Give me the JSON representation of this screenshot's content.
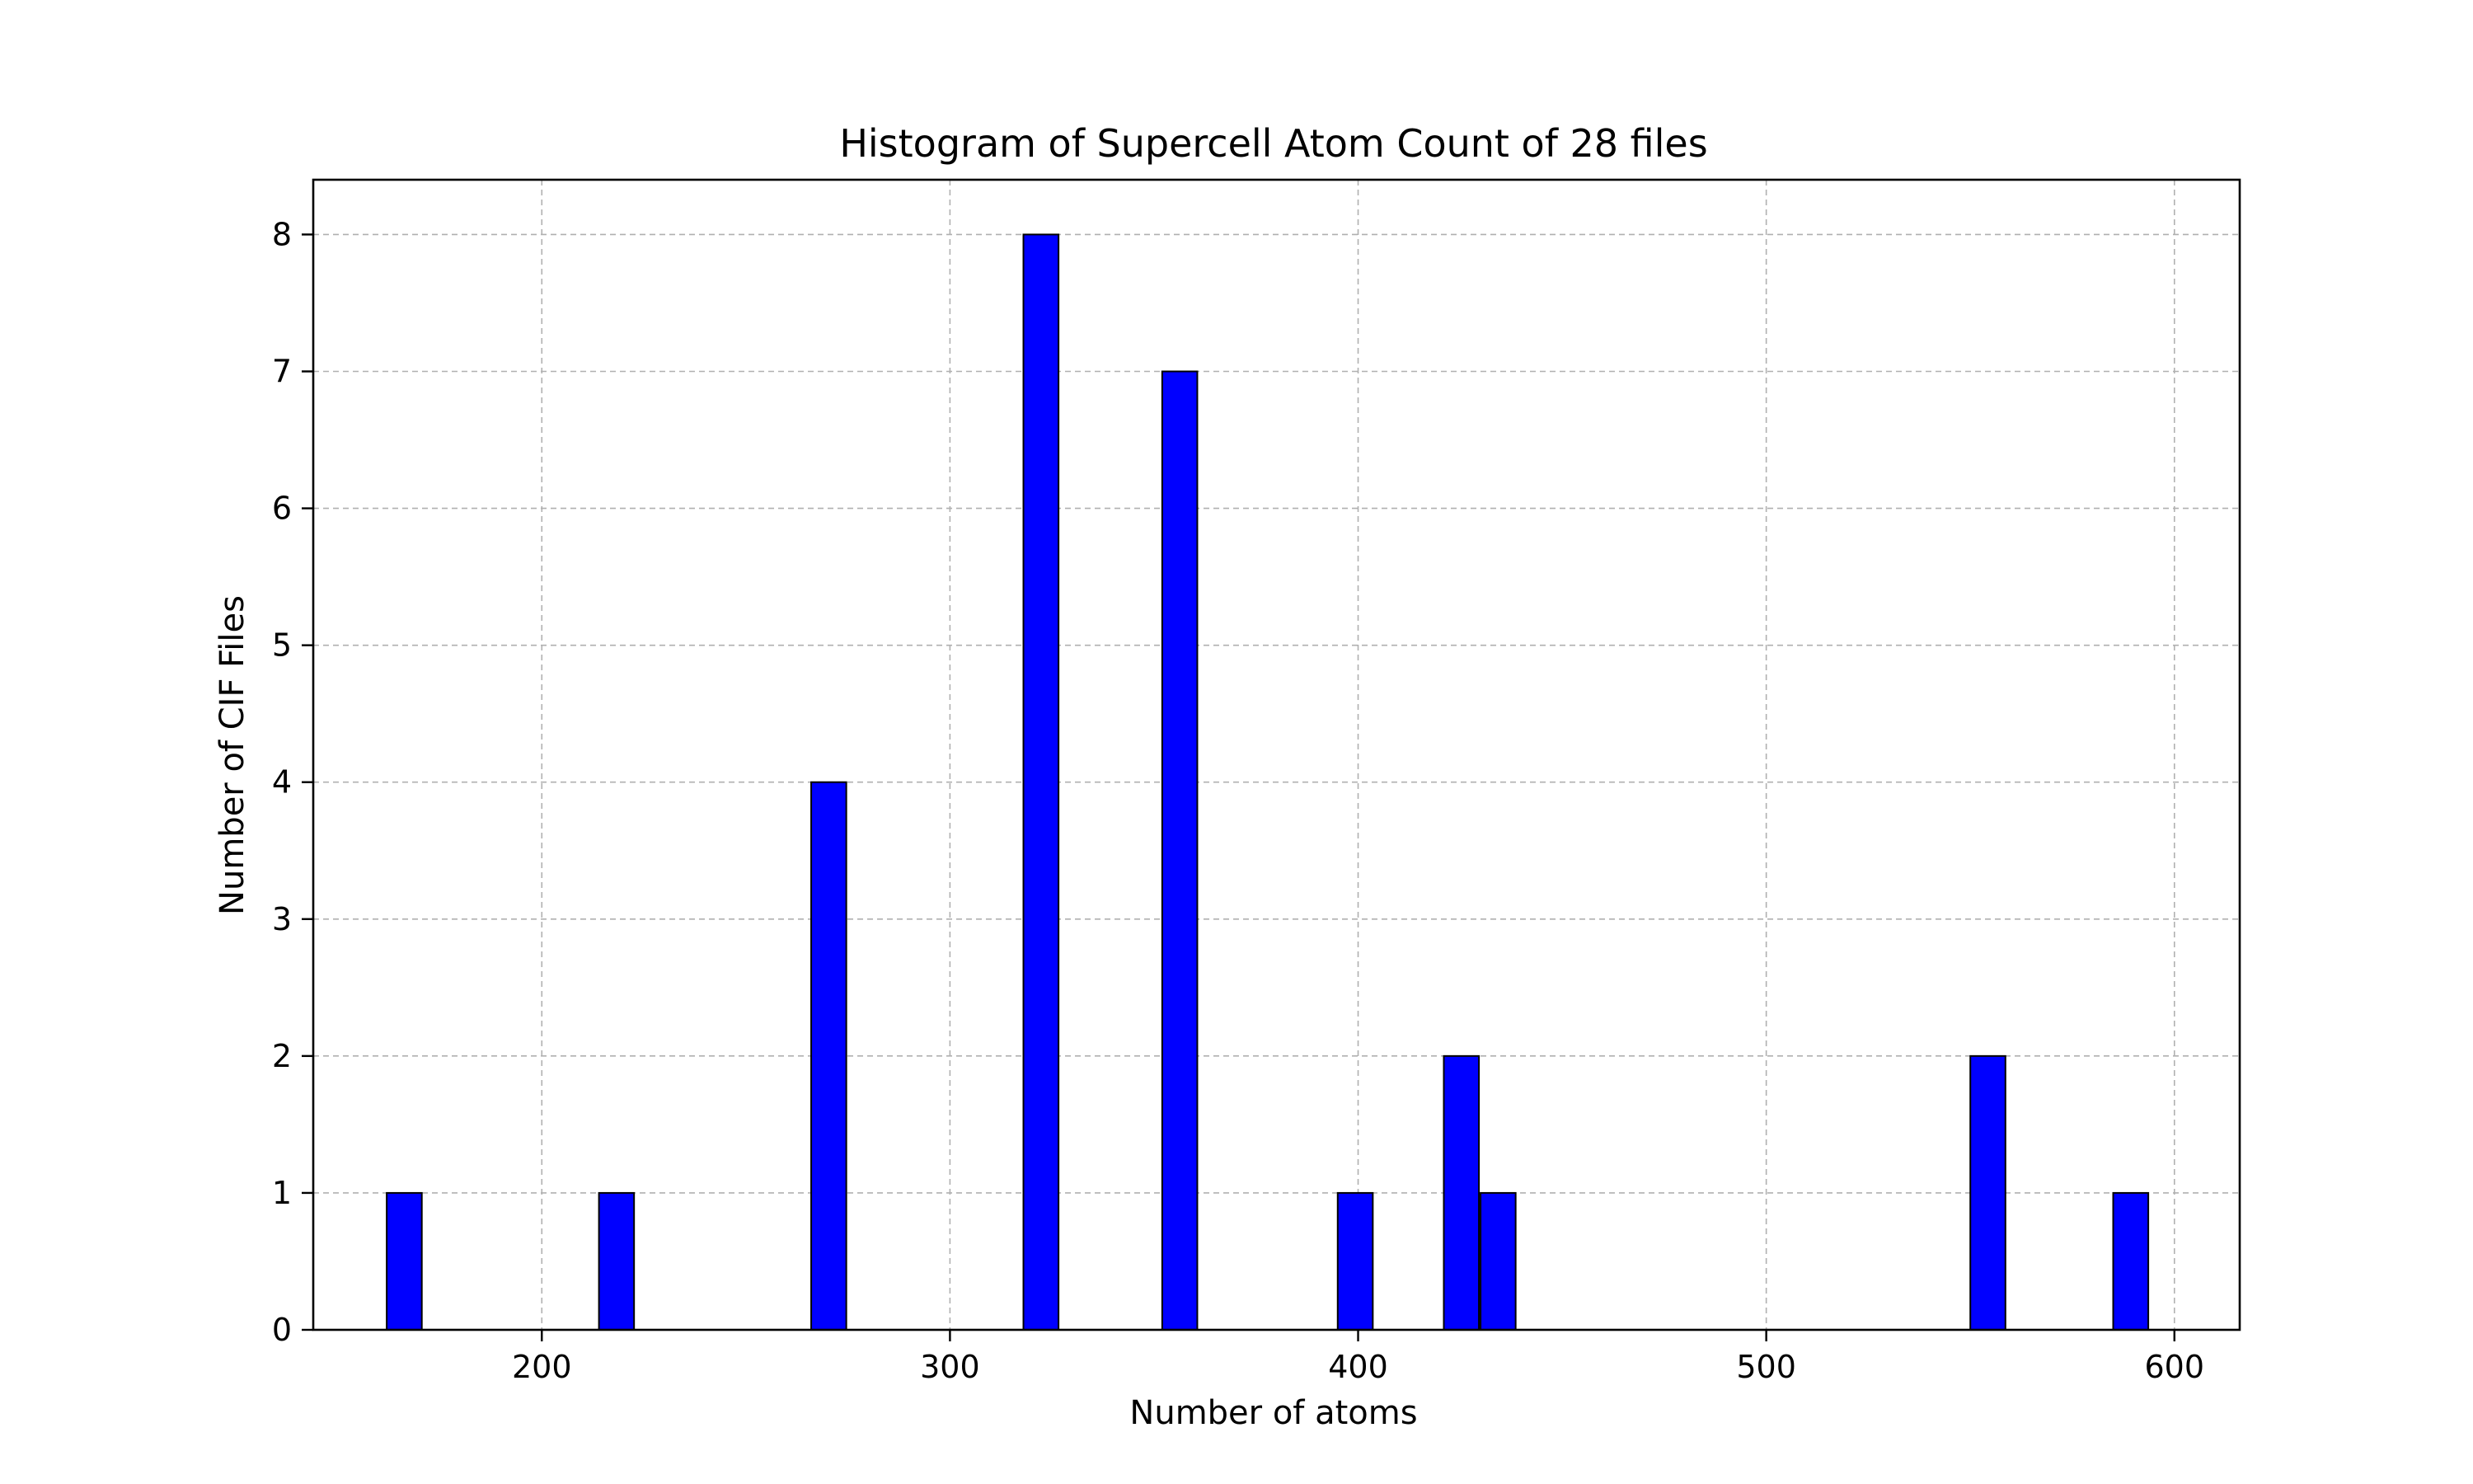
{
  "chart_data": {
    "type": "bar",
    "title": "Histogram of Supercell Atom Count of 28 files",
    "xlabel": "Number of atoms",
    "ylabel": "Number of CIF Files",
    "xlim": [
      144,
      616
    ],
    "ylim": [
      0,
      8.4
    ],
    "bin_width": 8.6,
    "x_ticks": [
      200,
      300,
      400,
      500,
      600
    ],
    "y_ticks": [
      0,
      1,
      2,
      3,
      4,
      5,
      6,
      7,
      8
    ],
    "grid": true,
    "color": "#0000ff",
    "edge_color": "#000000",
    "bins": [
      {
        "start": 162,
        "value": 1
      },
      {
        "start": 214,
        "value": 1
      },
      {
        "start": 266,
        "value": 4
      },
      {
        "start": 318,
        "value": 8
      },
      {
        "start": 352,
        "value": 7
      },
      {
        "start": 395,
        "value": 1
      },
      {
        "start": 421,
        "value": 2
      },
      {
        "start": 430,
        "value": 1
      },
      {
        "start": 550,
        "value": 2
      },
      {
        "start": 585,
        "value": 1
      }
    ]
  }
}
